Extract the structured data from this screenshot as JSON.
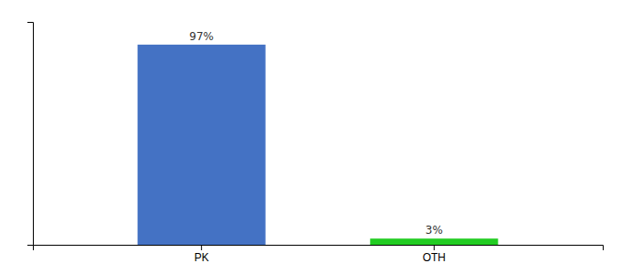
{
  "chart_data": {
    "type": "bar",
    "categories": [
      "PK",
      "OTH"
    ],
    "values": [
      97,
      3
    ],
    "value_labels": [
      "97%",
      "3%"
    ],
    "data_labels": true,
    "colors": [
      "#4472c4",
      "#22cc22"
    ],
    "ylim": [
      0,
      108
    ],
    "yticks": [],
    "tick_labels": "x",
    "grid": false
  }
}
